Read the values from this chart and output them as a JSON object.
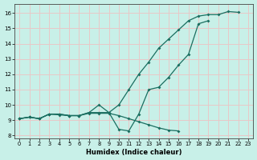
{
  "xlabel": "Humidex (Indice chaleur)",
  "bg_color": "#c8f0e8",
  "grid_color": "#e8c8c8",
  "line_color": "#1a6e60",
  "xlim": [
    -0.5,
    23.5
  ],
  "ylim": [
    7.8,
    16.6
  ],
  "xticks": [
    0,
    1,
    2,
    3,
    4,
    5,
    6,
    7,
    8,
    9,
    10,
    11,
    12,
    13,
    14,
    15,
    16,
    17,
    18,
    19,
    20,
    21,
    22,
    23
  ],
  "yticks": [
    8,
    9,
    10,
    11,
    12,
    13,
    14,
    15,
    16
  ],
  "line1": {
    "x": [
      0,
      1,
      2,
      3,
      4,
      5,
      6,
      7,
      8,
      9,
      10,
      11,
      12,
      13,
      14,
      15,
      16,
      17,
      18,
      19,
      20,
      21,
      22
    ],
    "y": [
      9.1,
      9.2,
      9.1,
      9.4,
      9.4,
      9.3,
      9.3,
      9.5,
      9.5,
      9.5,
      10.0,
      11.0,
      12.0,
      12.8,
      13.7,
      14.3,
      14.9,
      15.5,
      15.8,
      15.9,
      15.9,
      16.1,
      16.05
    ]
  },
  "line2": {
    "x": [
      0,
      1,
      2,
      3,
      4,
      5,
      6,
      7,
      8,
      9,
      10,
      11,
      12,
      13,
      14,
      15,
      16,
      17,
      18,
      19,
      20,
      21,
      22
    ],
    "y": [
      9.1,
      9.2,
      9.1,
      9.4,
      9.4,
      9.3,
      9.3,
      9.5,
      10.0,
      9.5,
      8.4,
      8.3,
      9.4,
      11.0,
      11.15,
      11.8,
      12.6,
      13.3,
      15.3,
      15.5,
      null,
      null,
      null
    ]
  },
  "line3": {
    "x": [
      0,
      1,
      2,
      3,
      4,
      5,
      6,
      7,
      8,
      9,
      10,
      11,
      12,
      13,
      14,
      15,
      16,
      17,
      18,
      19,
      20,
      21,
      22,
      23
    ],
    "y": [
      9.1,
      9.2,
      9.1,
      9.4,
      9.35,
      9.3,
      9.3,
      9.45,
      9.45,
      9.45,
      9.3,
      9.1,
      8.9,
      8.7,
      8.5,
      8.35,
      8.3,
      null,
      null,
      null,
      null,
      null,
      null,
      null
    ]
  }
}
